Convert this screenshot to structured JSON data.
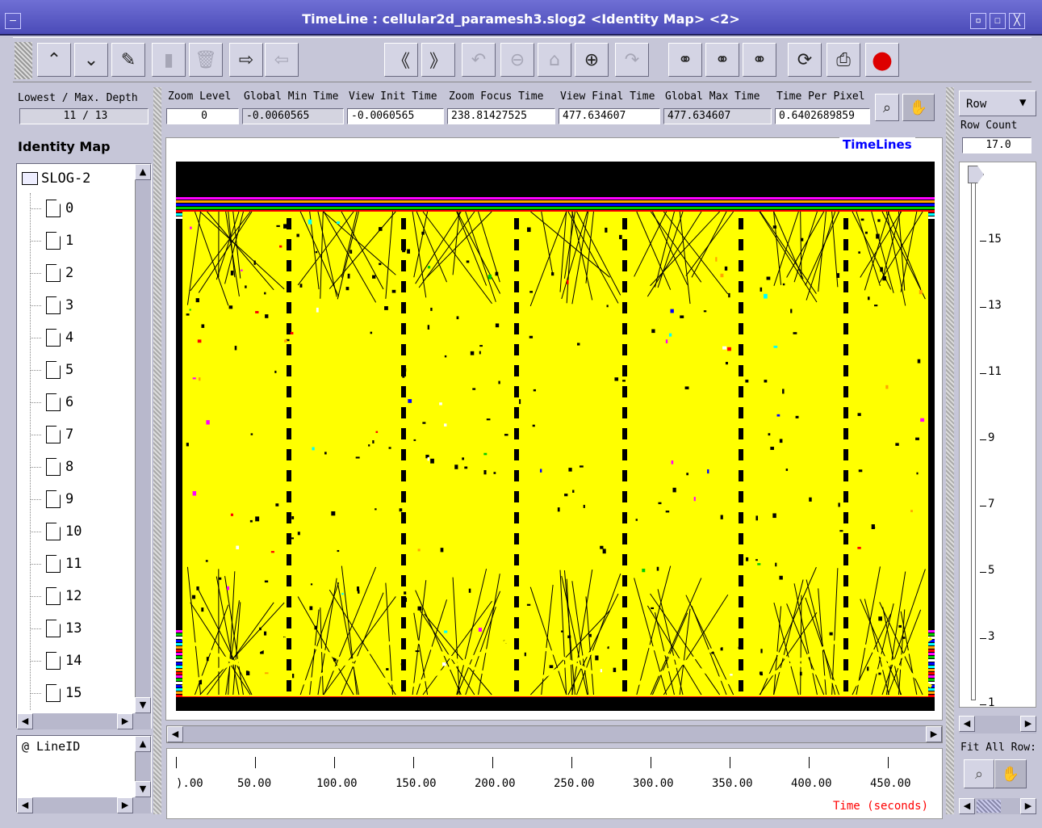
{
  "window": {
    "title": "TimeLine : cellular2d_paramesh3.slog2  <Identity Map> <2>",
    "controls": [
      "minimize",
      "maximize",
      "close"
    ]
  },
  "toolbar": {
    "buttons": [
      {
        "name": "up-icon",
        "glyph": "⌃"
      },
      {
        "name": "down-icon",
        "glyph": "⌄"
      },
      {
        "name": "edit-icon",
        "glyph": "✎"
      },
      {
        "name": "paste-icon",
        "glyph": "▮"
      },
      {
        "name": "delete-icon",
        "glyph": "🗑"
      },
      {
        "name": "export-icon",
        "glyph": "⇨"
      },
      {
        "name": "import-icon",
        "glyph": "⇦"
      },
      {
        "name": "scroll-left-icon",
        "glyph": "《"
      },
      {
        "name": "scroll-right-icon",
        "glyph": "》"
      },
      {
        "name": "undo-icon",
        "glyph": "↶"
      },
      {
        "name": "zoom-out-icon",
        "glyph": "⊖"
      },
      {
        "name": "home-icon",
        "glyph": "⌂"
      },
      {
        "name": "zoom-in-icon",
        "glyph": "⊕"
      },
      {
        "name": "redo-icon",
        "glyph": "↷"
      },
      {
        "name": "search-backward-icon",
        "glyph": "⚭"
      },
      {
        "name": "search-icon",
        "glyph": "⚭"
      },
      {
        "name": "search-forward-icon",
        "glyph": "⚭"
      },
      {
        "name": "refresh-icon",
        "glyph": "⟳"
      },
      {
        "name": "print-icon",
        "glyph": "⎙"
      },
      {
        "name": "stop-icon",
        "glyph": "●"
      }
    ]
  },
  "depth": {
    "label": "Lowest / Max. Depth",
    "value": "11 / 13"
  },
  "tree": {
    "header": "Identity Map",
    "root": "SLOG-2",
    "items": [
      "0",
      "1",
      "2",
      "3",
      "4",
      "5",
      "6",
      "7",
      "8",
      "9",
      "10",
      "11",
      "12",
      "13",
      "14",
      "15"
    ]
  },
  "lower_list": {
    "item": "@ LineID"
  },
  "info_bar": {
    "fields": [
      {
        "label": "Zoom Level",
        "value": "0",
        "grey": false
      },
      {
        "label": "Global Min Time",
        "value": "-0.0060565",
        "grey": true
      },
      {
        "label": "View  Init Time",
        "value": "-0.0060565",
        "grey": false
      },
      {
        "label": "Zoom Focus Time",
        "value": "238.81427525",
        "grey": false
      },
      {
        "label": "View Final Time",
        "value": "477.634607",
        "grey": false
      },
      {
        "label": "Global Max Time",
        "value": "477.634607",
        "grey": true
      },
      {
        "label": "Time Per Pixel",
        "value": "0.6402689859",
        "grey": false
      }
    ]
  },
  "canvas": {
    "label": "TimeLines",
    "label_color": "#0000ff"
  },
  "ruler": {
    "labels": [
      ").00",
      "50.00",
      "100.00",
      "150.00",
      "200.00",
      "250.00",
      "300.00",
      "350.00",
      "400.00",
      "450.00"
    ],
    "axis_label": "Time (seconds)",
    "axis_label_color": "#ff0000"
  },
  "row_panel": {
    "mode": "Row",
    "row_count_label": "Row Count",
    "row_count_value": "17.0",
    "ticks": [
      "15",
      "13",
      "11",
      "9",
      "7",
      "5",
      "3",
      "1"
    ],
    "fit_label": "Fit All Row:"
  },
  "colors": {
    "timeline_yellow": "#ffff00",
    "canvas_bg": "#000000",
    "title_bar": "#5a5ac8"
  }
}
